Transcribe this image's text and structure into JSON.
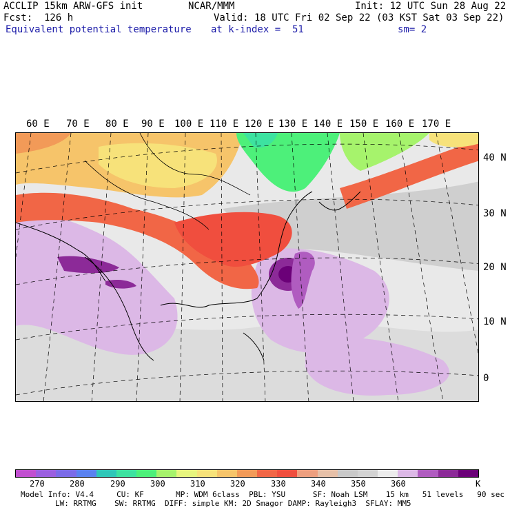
{
  "header": {
    "line1_left": "ACCLIP 15km ARW-GFS init",
    "line1_center": "NCAR/MMM",
    "line1_right": "Init: 12 UTC Sun 28 Aug 22",
    "line2_left": "Fcst:  126 h",
    "line2_right": "Valid: 18 UTC Fri 02 Sep 22 (03 KST Sat 03 Sep 22)",
    "line3_left": "Equivalent potential temperature",
    "line3_center": "at k-index =  51",
    "line3_right": "sm= 2"
  },
  "longitudes": [
    "60 E",
    "70 E",
    "80 E",
    "90 E",
    "100 E",
    "110 E",
    "120 E",
    "130 E",
    "140 E",
    "150 E",
    "160 E",
    "170 E"
  ],
  "latitudes": [
    "40 N",
    "30 N",
    "20 N",
    "10 N",
    "0"
  ],
  "legend": {
    "labels": [
      "270",
      "280",
      "290",
      "300",
      "310",
      "320",
      "330",
      "340",
      "350",
      "360"
    ],
    "unit": "K",
    "colors": [
      "#c14fd0",
      "#9b5fe0",
      "#7b6be8",
      "#5a82f0",
      "#2fc7b8",
      "#3de2a0",
      "#4df07a",
      "#a6f36c",
      "#e7f57e",
      "#f7e27a",
      "#f6c46a",
      "#f29a58",
      "#f16646",
      "#f04e3e",
      "#ee9f7f",
      "#e6c0a8",
      "#c9c9c9",
      "#d3d3d3",
      "#ececec",
      "#dcb8e6",
      "#b05cc0",
      "#8c2a98",
      "#6b0078"
    ]
  },
  "footer": {
    "line1": "Model Info: V4.4     CU: KF       MP: WDM 6class  PBL: YSU      SF: Noah LSM    15 km   51 levels   90 sec",
    "line2": "LW: RRTMG    SW: RRTMG  DIFF: simple KM: 2D Smagor DAMP: Rayleigh3  SFLAY: MM5"
  }
}
